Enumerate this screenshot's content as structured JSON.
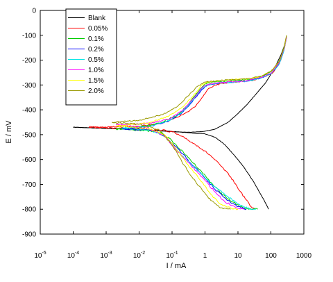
{
  "chart_data": {
    "type": "line",
    "title": "",
    "xlabel": "I  /  mA",
    "ylabel": "E  /  mV",
    "xscale": "log",
    "xlim": [
      1e-05,
      1000
    ],
    "ylim": [
      -900,
      0
    ],
    "grid": false,
    "legend_position": "top-left",
    "x_ticks": [
      {
        "base": "10",
        "exp": "-5"
      },
      {
        "base": "10",
        "exp": "-4"
      },
      {
        "base": "10",
        "exp": "-3"
      },
      {
        "base": "10",
        "exp": "-2"
      },
      {
        "base": "10",
        "exp": "-1"
      },
      {
        "base": "1",
        "exp": ""
      },
      {
        "base": "10",
        "exp": ""
      },
      {
        "base": "100",
        "exp": ""
      },
      {
        "base": "1000",
        "exp": ""
      }
    ],
    "y_ticks": [
      "0",
      "-100",
      "-200",
      "-300",
      "-400",
      "-500",
      "-600",
      "-700",
      "-800",
      "-900"
    ],
    "series": [
      {
        "name": "Blank",
        "color": "#000000",
        "cathodic": [
          [
            0.0001,
            -470
          ],
          [
            0.01,
            -478
          ],
          [
            0.03,
            -482
          ],
          [
            0.08,
            -486
          ],
          [
            0.1,
            -487
          ],
          [
            0.3,
            -492
          ],
          [
            1,
            -497
          ],
          [
            2,
            -510
          ],
          [
            4,
            -540
          ],
          [
            8,
            -585
          ],
          [
            15,
            -630
          ],
          [
            30,
            -690
          ],
          [
            60,
            -760
          ],
          [
            85,
            -800
          ]
        ],
        "anodic": [
          [
            0.0001,
            -470
          ],
          [
            0.02,
            -481
          ],
          [
            0.08,
            -487
          ],
          [
            0.2,
            -490
          ],
          [
            0.4,
            -490
          ],
          [
            0.8,
            -488
          ],
          [
            2,
            -478
          ],
          [
            5,
            -450
          ],
          [
            10,
            -415
          ],
          [
            20,
            -375
          ],
          [
            40,
            -328
          ],
          [
            70,
            -290
          ],
          [
            120,
            -240
          ],
          [
            200,
            -180
          ],
          [
            260,
            -140
          ],
          [
            300,
            -105
          ]
        ]
      },
      {
        "name": "0.05%",
        "color": "#ff0000",
        "cathodic": [
          [
            0.0003,
            -470
          ],
          [
            0.01,
            -476
          ],
          [
            0.05,
            -482
          ],
          [
            0.1,
            -488
          ],
          [
            0.25,
            -515
          ],
          [
            0.6,
            -545
          ],
          [
            1.5,
            -585
          ],
          [
            3,
            -625
          ],
          [
            6,
            -670
          ],
          [
            12,
            -730
          ],
          [
            25,
            -790
          ],
          [
            32,
            -800
          ]
        ],
        "anodic": [
          [
            0.0003,
            -470
          ],
          [
            0.01,
            -466
          ],
          [
            0.05,
            -454
          ],
          [
            0.15,
            -430
          ],
          [
            0.3,
            -408
          ],
          [
            0.5,
            -388
          ],
          [
            0.8,
            -352
          ],
          [
            1.2,
            -318
          ],
          [
            2,
            -300
          ],
          [
            4,
            -292
          ],
          [
            8,
            -288
          ],
          [
            15,
            -285
          ],
          [
            30,
            -280
          ],
          [
            60,
            -268
          ],
          [
            120,
            -248
          ],
          [
            200,
            -200
          ],
          [
            260,
            -150
          ],
          [
            300,
            -105
          ]
        ]
      },
      {
        "name": "0.1%",
        "color": "#00cc00",
        "cathodic": [
          [
            0.002,
            -478
          ],
          [
            0.01,
            -481
          ],
          [
            0.05,
            -492
          ],
          [
            0.1,
            -525
          ],
          [
            0.3,
            -590
          ],
          [
            0.8,
            -650
          ],
          [
            2,
            -710
          ],
          [
            5,
            -760
          ],
          [
            12,
            -790
          ],
          [
            25,
            -800
          ],
          [
            40,
            -800
          ]
        ],
        "anodic": [
          [
            0.002,
            -478
          ],
          [
            0.01,
            -470
          ],
          [
            0.05,
            -450
          ],
          [
            0.15,
            -420
          ],
          [
            0.3,
            -380
          ],
          [
            0.6,
            -330
          ],
          [
            1,
            -295
          ],
          [
            2,
            -288
          ],
          [
            5,
            -285
          ],
          [
            10,
            -282
          ],
          [
            30,
            -276
          ],
          [
            60,
            -264
          ],
          [
            120,
            -240
          ],
          [
            200,
            -190
          ],
          [
            260,
            -140
          ],
          [
            300,
            -105
          ]
        ]
      },
      {
        "name": "0.2%",
        "color": "#0000ff",
        "cathodic": [
          [
            0.003,
            -477
          ],
          [
            0.02,
            -481
          ],
          [
            0.06,
            -505
          ],
          [
            0.12,
            -545
          ],
          [
            0.3,
            -600
          ],
          [
            0.8,
            -660
          ],
          [
            2,
            -720
          ],
          [
            5,
            -765
          ],
          [
            10,
            -790
          ],
          [
            18,
            -800
          ]
        ],
        "anodic": [
          [
            0.003,
            -477
          ],
          [
            0.02,
            -468
          ],
          [
            0.08,
            -445
          ],
          [
            0.2,
            -412
          ],
          [
            0.4,
            -370
          ],
          [
            0.8,
            -318
          ],
          [
            1.2,
            -300
          ],
          [
            3,
            -292
          ],
          [
            8,
            -288
          ],
          [
            20,
            -284
          ],
          [
            50,
            -272
          ],
          [
            100,
            -255
          ],
          [
            180,
            -215
          ],
          [
            250,
            -160
          ],
          [
            300,
            -105
          ]
        ]
      },
      {
        "name": "0.5%",
        "color": "#00e5e5",
        "cathodic": [
          [
            0.003,
            -474
          ],
          [
            0.02,
            -480
          ],
          [
            0.06,
            -505
          ],
          [
            0.12,
            -555
          ],
          [
            0.3,
            -605
          ],
          [
            0.8,
            -660
          ],
          [
            2,
            -710
          ],
          [
            5,
            -750
          ],
          [
            12,
            -785
          ],
          [
            25,
            -800
          ],
          [
            35,
            -800
          ]
        ],
        "anodic": [
          [
            0.003,
            -474
          ],
          [
            0.02,
            -466
          ],
          [
            0.08,
            -444
          ],
          [
            0.2,
            -410
          ],
          [
            0.4,
            -365
          ],
          [
            0.8,
            -315
          ],
          [
            1.2,
            -300
          ],
          [
            3,
            -292
          ],
          [
            8,
            -288
          ],
          [
            20,
            -284
          ],
          [
            50,
            -272
          ],
          [
            100,
            -255
          ],
          [
            180,
            -215
          ],
          [
            250,
            -160
          ],
          [
            300,
            -105
          ]
        ]
      },
      {
        "name": "1.0%",
        "color": "#ff00ff",
        "cathodic": [
          [
            0.002,
            -460
          ],
          [
            0.02,
            -475
          ],
          [
            0.06,
            -505
          ],
          [
            0.12,
            -555
          ],
          [
            0.3,
            -610
          ],
          [
            0.8,
            -670
          ],
          [
            2,
            -730
          ],
          [
            4,
            -770
          ],
          [
            8,
            -790
          ],
          [
            15,
            -800
          ]
        ],
        "anodic": [
          [
            0.002,
            -460
          ],
          [
            0.02,
            -455
          ],
          [
            0.08,
            -438
          ],
          [
            0.2,
            -405
          ],
          [
            0.4,
            -362
          ],
          [
            0.8,
            -312
          ],
          [
            1.2,
            -298
          ],
          [
            3,
            -290
          ],
          [
            8,
            -286
          ],
          [
            20,
            -282
          ],
          [
            50,
            -270
          ],
          [
            100,
            -252
          ],
          [
            180,
            -210
          ],
          [
            250,
            -155
          ],
          [
            300,
            -105
          ]
        ]
      },
      {
        "name": "1.5%",
        "color": "#ffff00",
        "cathodic": [
          [
            0.002,
            -465
          ],
          [
            0.02,
            -475
          ],
          [
            0.06,
            -500
          ],
          [
            0.12,
            -550
          ],
          [
            0.3,
            -620
          ],
          [
            0.8,
            -690
          ],
          [
            1.5,
            -740
          ],
          [
            3,
            -780
          ],
          [
            6,
            -795
          ],
          [
            10,
            -800
          ]
        ],
        "anodic": [
          [
            0.002,
            -465
          ],
          [
            0.02,
            -452
          ],
          [
            0.08,
            -425
          ],
          [
            0.2,
            -390
          ],
          [
            0.4,
            -350
          ],
          [
            0.8,
            -300
          ],
          [
            1.2,
            -288
          ],
          [
            3,
            -282
          ],
          [
            8,
            -278
          ],
          [
            20,
            -275
          ],
          [
            50,
            -265
          ],
          [
            100,
            -245
          ],
          [
            180,
            -205
          ],
          [
            250,
            -150
          ],
          [
            300,
            -102
          ]
        ]
      },
      {
        "name": "2.0%",
        "color": "#999900",
        "cathodic": [
          [
            0.0015,
            -450
          ],
          [
            0.01,
            -458
          ],
          [
            0.04,
            -480
          ],
          [
            0.1,
            -540
          ],
          [
            0.2,
            -610
          ],
          [
            0.4,
            -670
          ],
          [
            0.8,
            -720
          ],
          [
            1.5,
            -765
          ],
          [
            3,
            -795
          ],
          [
            6,
            -800
          ]
        ],
        "anodic": [
          [
            0.0015,
            -450
          ],
          [
            0.01,
            -442
          ],
          [
            0.05,
            -420
          ],
          [
            0.15,
            -385
          ],
          [
            0.3,
            -345
          ],
          [
            0.6,
            -305
          ],
          [
            1,
            -288
          ],
          [
            3,
            -282
          ],
          [
            8,
            -278
          ],
          [
            20,
            -275
          ],
          [
            50,
            -265
          ],
          [
            100,
            -245
          ],
          [
            180,
            -205
          ],
          [
            250,
            -148
          ],
          [
            300,
            -100
          ]
        ]
      }
    ]
  }
}
